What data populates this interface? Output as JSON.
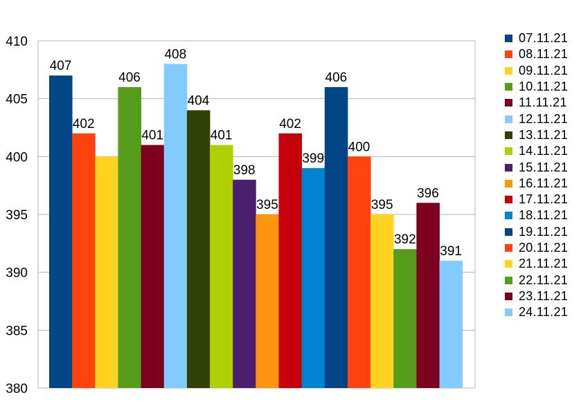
{
  "chart_data": {
    "type": "bar",
    "categories": [
      "07.11.21",
      "08.11.21",
      "09.11.21",
      "10.11.21",
      "11.11.21",
      "12.11.21",
      "13.11.21",
      "14.11.21",
      "15.11.21",
      "16.11.21",
      "17.11.21",
      "18.11.21",
      "19.11.21",
      "20.11.21",
      "21.11.21",
      "22.11.21",
      "23.11.21",
      "24.11.21"
    ],
    "values": [
      407,
      402,
      400,
      406,
      401,
      408,
      404,
      401,
      398,
      395,
      402,
      399,
      406,
      400,
      395,
      392,
      396,
      391
    ],
    "data_labels": [
      "407",
      "402",
      "",
      "406",
      "401",
      "408",
      "404",
      "401",
      "398",
      "395",
      "402",
      "399",
      "406",
      "400",
      "395",
      "392",
      "396",
      "391"
    ],
    "colors": [
      "#004586",
      "#ff420e",
      "#ffd320",
      "#579d1c",
      "#7e0021",
      "#83caff",
      "#314004",
      "#aecf00",
      "#4b1f6f",
      "#ff950e",
      "#c5000b",
      "#0084d1",
      "#004586",
      "#ff420e",
      "#ffd320",
      "#579d1c",
      "#7e0021",
      "#83caff"
    ],
    "ylim": [
      380,
      410
    ],
    "yticks": [
      "380",
      "385",
      "390",
      "395",
      "400",
      "405",
      "410"
    ],
    "grid": true,
    "legend_position": "right",
    "title": "",
    "xlabel": "",
    "ylabel": ""
  }
}
